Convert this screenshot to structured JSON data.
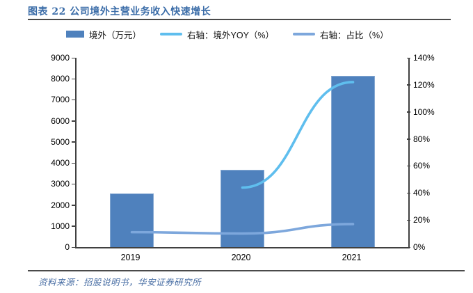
{
  "header": {
    "title": "图表 22 公司境外主营业务收入快速增长"
  },
  "footer": {
    "source": "资料来源：招股说明书，华安证券研究所"
  },
  "colors": {
    "title": "#3a6ca8",
    "source": "#4a6fa5",
    "axis": "#404040",
    "bar": "#4f81bd",
    "bar_border": "#87a9d2",
    "yoy_line": "#5fbeee",
    "share_line": "#7da7dc"
  },
  "chart_data": {
    "type": "bar",
    "subtype": "combo-bar-line",
    "title": "图表 22 公司境外主营业务收入快速增长",
    "categories": [
      "2019",
      "2020",
      "2021"
    ],
    "series": [
      {
        "name": "境外（万元）",
        "type": "bar",
        "axis": "left",
        "values": [
          2550,
          3670,
          8150
        ]
      },
      {
        "name": "右轴：境外YOY（%）",
        "type": "line",
        "axis": "right",
        "values": [
          null,
          44,
          122
        ]
      },
      {
        "name": "右轴：占比（%）",
        "type": "line",
        "axis": "right",
        "values": [
          11,
          10,
          17
        ]
      }
    ],
    "left_axis": {
      "min": 0,
      "max": 9000,
      "step": 1000
    },
    "right_axis": {
      "min": 0,
      "max": 140,
      "step": 20,
      "suffix": "%"
    },
    "legend_position": "top",
    "grid": "off"
  }
}
